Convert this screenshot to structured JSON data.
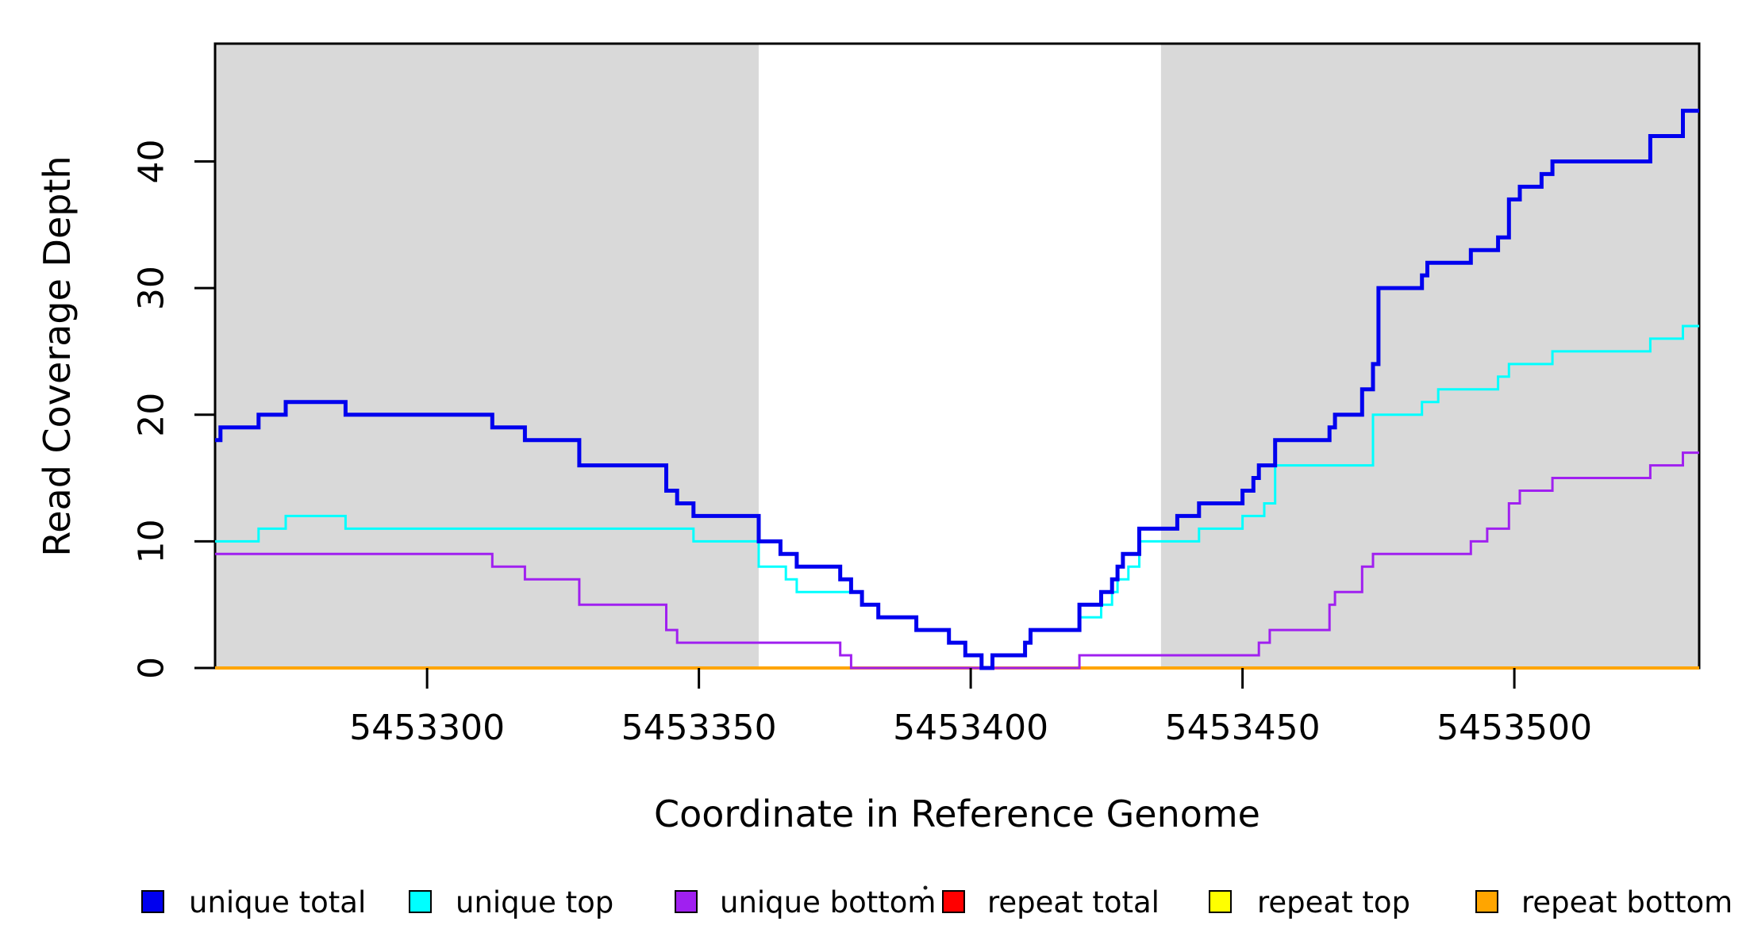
{
  "chart_data": {
    "type": "line",
    "subtype": "step-coverage-plot",
    "title": "",
    "xlabel": "Coordinate in Reference Genome",
    "ylabel": "Read Coverage Depth",
    "x_domain": [
      5453261,
      5453534
    ],
    "y_domain": [
      0,
      49.3
    ],
    "x_ticks": [
      5453300,
      5453350,
      5453400,
      5453450,
      5453500
    ],
    "x_tick_labels": [
      "5453300",
      "5453350",
      "5453400",
      "5453450",
      "5453500"
    ],
    "y_ticks": [
      0,
      10,
      20,
      30,
      40
    ],
    "y_tick_labels": [
      "0",
      "10",
      "20",
      "30",
      "40"
    ],
    "grid": false,
    "background_color": "#ffffff",
    "shaded_region_color": "#d9d9d9",
    "shaded_regions": [
      {
        "x0": 5453261,
        "x1": 5453361
      },
      {
        "x0": 5453435,
        "x1": 5453534
      }
    ],
    "draw_order": [
      "repeat total",
      "repeat top",
      "repeat bottom",
      "unique bottom",
      "unique top",
      "unique total"
    ],
    "series": [
      {
        "name": "unique total",
        "color": "#0000ee",
        "line_width": 5,
        "steps": [
          [
            5453261,
            18
          ],
          [
            5453262,
            19
          ],
          [
            5453269,
            20
          ],
          [
            5453274,
            21
          ],
          [
            5453285,
            20
          ],
          [
            5453312,
            19
          ],
          [
            5453318,
            18
          ],
          [
            5453328,
            16
          ],
          [
            5453344,
            14
          ],
          [
            5453346,
            13
          ],
          [
            5453349,
            12
          ],
          [
            5453361,
            10
          ],
          [
            5453365,
            9
          ],
          [
            5453368,
            8
          ],
          [
            5453376,
            7
          ],
          [
            5453378,
            6
          ],
          [
            5453380,
            5
          ],
          [
            5453383,
            4
          ],
          [
            5453390,
            3
          ],
          [
            5453396,
            2
          ],
          [
            5453399,
            1
          ],
          [
            5453402,
            0
          ],
          [
            5453404,
            1
          ],
          [
            5453410,
            2
          ],
          [
            5453411,
            3
          ],
          [
            5453420,
            5
          ],
          [
            5453424,
            6
          ],
          [
            5453426,
            7
          ],
          [
            5453427,
            8
          ],
          [
            5453428,
            9
          ],
          [
            5453431,
            11
          ],
          [
            5453438,
            12
          ],
          [
            5453442,
            13
          ],
          [
            5453450,
            14
          ],
          [
            5453452,
            15
          ],
          [
            5453453,
            16
          ],
          [
            5453456,
            18
          ],
          [
            5453466,
            19
          ],
          [
            5453467,
            20
          ],
          [
            5453472,
            22
          ],
          [
            5453474,
            24
          ],
          [
            5453475,
            30
          ],
          [
            5453483,
            31
          ],
          [
            5453484,
            32
          ],
          [
            5453492,
            33
          ],
          [
            5453497,
            34
          ],
          [
            5453499,
            37
          ],
          [
            5453501,
            38
          ],
          [
            5453505,
            39
          ],
          [
            5453507,
            40
          ],
          [
            5453525,
            42
          ],
          [
            5453531,
            44
          ]
        ]
      },
      {
        "name": "unique top",
        "color": "#00ffff",
        "line_width": 3,
        "steps": [
          [
            5453261,
            10
          ],
          [
            5453269,
            11
          ],
          [
            5453274,
            12
          ],
          [
            5453285,
            11
          ],
          [
            5453349,
            10
          ],
          [
            5453361,
            8
          ],
          [
            5453366,
            7
          ],
          [
            5453368,
            6
          ],
          [
            5453380,
            5
          ],
          [
            5453383,
            4
          ],
          [
            5453390,
            3
          ],
          [
            5453396,
            2
          ],
          [
            5453399,
            1
          ],
          [
            5453402,
            0
          ],
          [
            5453404,
            1
          ],
          [
            5453410,
            2
          ],
          [
            5453411,
            3
          ],
          [
            5453420,
            4
          ],
          [
            5453424,
            5
          ],
          [
            5453426,
            6
          ],
          [
            5453427,
            7
          ],
          [
            5453429,
            8
          ],
          [
            5453431,
            10
          ],
          [
            5453442,
            11
          ],
          [
            5453450,
            12
          ],
          [
            5453454,
            13
          ],
          [
            5453456,
            16
          ],
          [
            5453474,
            20
          ],
          [
            5453483,
            21
          ],
          [
            5453486,
            22
          ],
          [
            5453497,
            23
          ],
          [
            5453499,
            24
          ],
          [
            5453507,
            25
          ],
          [
            5453525,
            26
          ],
          [
            5453531,
            27
          ]
        ]
      },
      {
        "name": "unique bottom",
        "color": "#a020f0",
        "line_width": 3,
        "steps": [
          [
            5453261,
            9
          ],
          [
            5453312,
            8
          ],
          [
            5453318,
            7
          ],
          [
            5453328,
            5
          ],
          [
            5453344,
            3
          ],
          [
            5453346,
            2
          ],
          [
            5453376,
            1
          ],
          [
            5453378,
            0
          ],
          [
            5453420,
            1
          ],
          [
            5453453,
            2
          ],
          [
            5453455,
            3
          ],
          [
            5453466,
            5
          ],
          [
            5453467,
            6
          ],
          [
            5453472,
            8
          ],
          [
            5453474,
            9
          ],
          [
            5453492,
            10
          ],
          [
            5453495,
            11
          ],
          [
            5453499,
            13
          ],
          [
            5453501,
            14
          ],
          [
            5453507,
            15
          ],
          [
            5453525,
            16
          ],
          [
            5453531,
            17
          ]
        ]
      },
      {
        "name": "repeat total",
        "color": "#ff0000",
        "line_width": 3,
        "steps": [
          [
            5453261,
            0
          ]
        ]
      },
      {
        "name": "repeat top",
        "color": "#ffff00",
        "line_width": 3,
        "steps": [
          [
            5453261,
            0
          ]
        ]
      },
      {
        "name": "repeat bottom",
        "color": "#ffa500",
        "line_width": 4,
        "steps": [
          [
            5453261,
            0
          ]
        ]
      }
    ],
    "legend": {
      "position": "bottom",
      "entries": [
        {
          "label": "unique total",
          "color": "#0000ee"
        },
        {
          "label": "unique top",
          "color": "#00ffff"
        },
        {
          "label": "unique bottom",
          "color": "#a020f0"
        },
        {
          "label": "repeat total",
          "color": "#ff0000"
        },
        {
          "label": "repeat top",
          "color": "#ffff00"
        },
        {
          "label": "repeat bottom",
          "color": "#ffa500"
        }
      ]
    }
  }
}
